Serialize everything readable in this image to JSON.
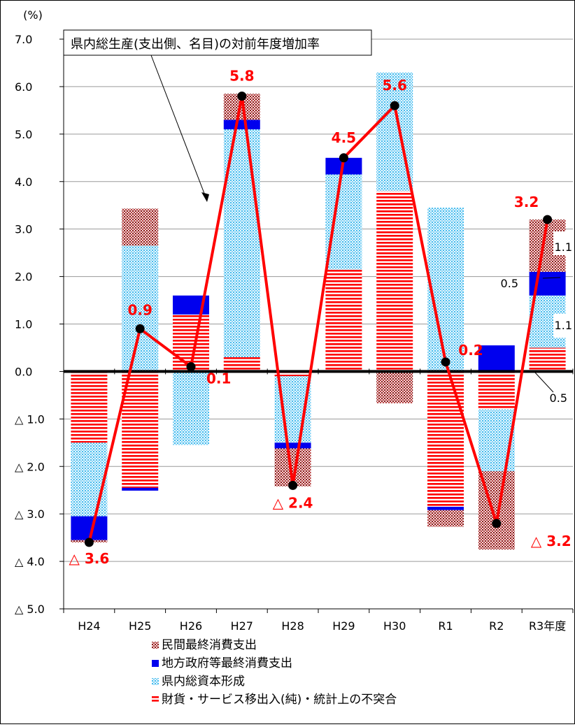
{
  "chart_data": {
    "type": "bar",
    "stacked": true,
    "y_unit_label": "(%)",
    "annotation": "県内総生産(支出側、名目)の対前年度増加率",
    "categories": [
      "H24",
      "H25",
      "H26",
      "H27",
      "H28",
      "H29",
      "H30",
      "R1",
      "R2",
      "R3年度"
    ],
    "ylim": [
      -5.0,
      7.0
    ],
    "y_ticks": [
      7.0,
      6.0,
      5.0,
      4.0,
      3.0,
      2.0,
      1.0,
      0.0,
      -1.0,
      -2.0,
      -3.0,
      -4.0,
      -5.0
    ],
    "y_tick_labels": [
      "7.0",
      "6.0",
      "5.0",
      "4.0",
      "3.0",
      "2.0",
      "1.0",
      "0.0",
      "△ 1.0",
      "△ 2.0",
      "△ 3.0",
      "△ 4.0",
      "△ 5.0"
    ],
    "grid": true,
    "legend_position": "bottom",
    "series": [
      {
        "name": "財貨・サービス移出入(純)・統計上の不突合",
        "color": "#ff0000",
        "pattern": "stripes",
        "values": [
          -1.5,
          -2.45,
          1.2,
          0.3,
          -0.1,
          2.15,
          3.8,
          -2.85,
          -0.8,
          0.5
        ]
      },
      {
        "name": "県内総資本形成",
        "color": "#44bbee",
        "pattern": "dots",
        "values": [
          -1.55,
          2.65,
          -1.55,
          4.8,
          -1.4,
          2.0,
          2.5,
          3.45,
          -1.3,
          1.1
        ]
      },
      {
        "name": "地方政府等最終消費支出",
        "color": "#0000ee",
        "pattern": "solid",
        "values": [
          -0.5,
          -0.06,
          0.4,
          0.2,
          -0.12,
          0.35,
          0.0,
          -0.07,
          0.55,
          0.5
        ]
      },
      {
        "name": "民間最終消費支出",
        "color": "#8b1a1a",
        "pattern": "checker",
        "values": [
          -0.05,
          0.78,
          0.0,
          0.55,
          -0.8,
          0.0,
          -0.67,
          -0.35,
          -1.65,
          1.1
        ]
      }
    ],
    "line": {
      "values": [
        -3.6,
        0.9,
        0.1,
        5.8,
        -2.4,
        4.5,
        5.6,
        0.2,
        -3.2,
        3.2
      ],
      "labels": [
        "△ 3.6",
        "0.9",
        "0.1",
        "5.8",
        "△ 2.4",
        "4.5",
        "5.6",
        "0.2",
        "△ 3.2",
        "3.2"
      ],
      "color": "#ff0000"
    },
    "component_labels": [
      "1.1",
      "0.5",
      "1.1",
      "0.5"
    ]
  }
}
